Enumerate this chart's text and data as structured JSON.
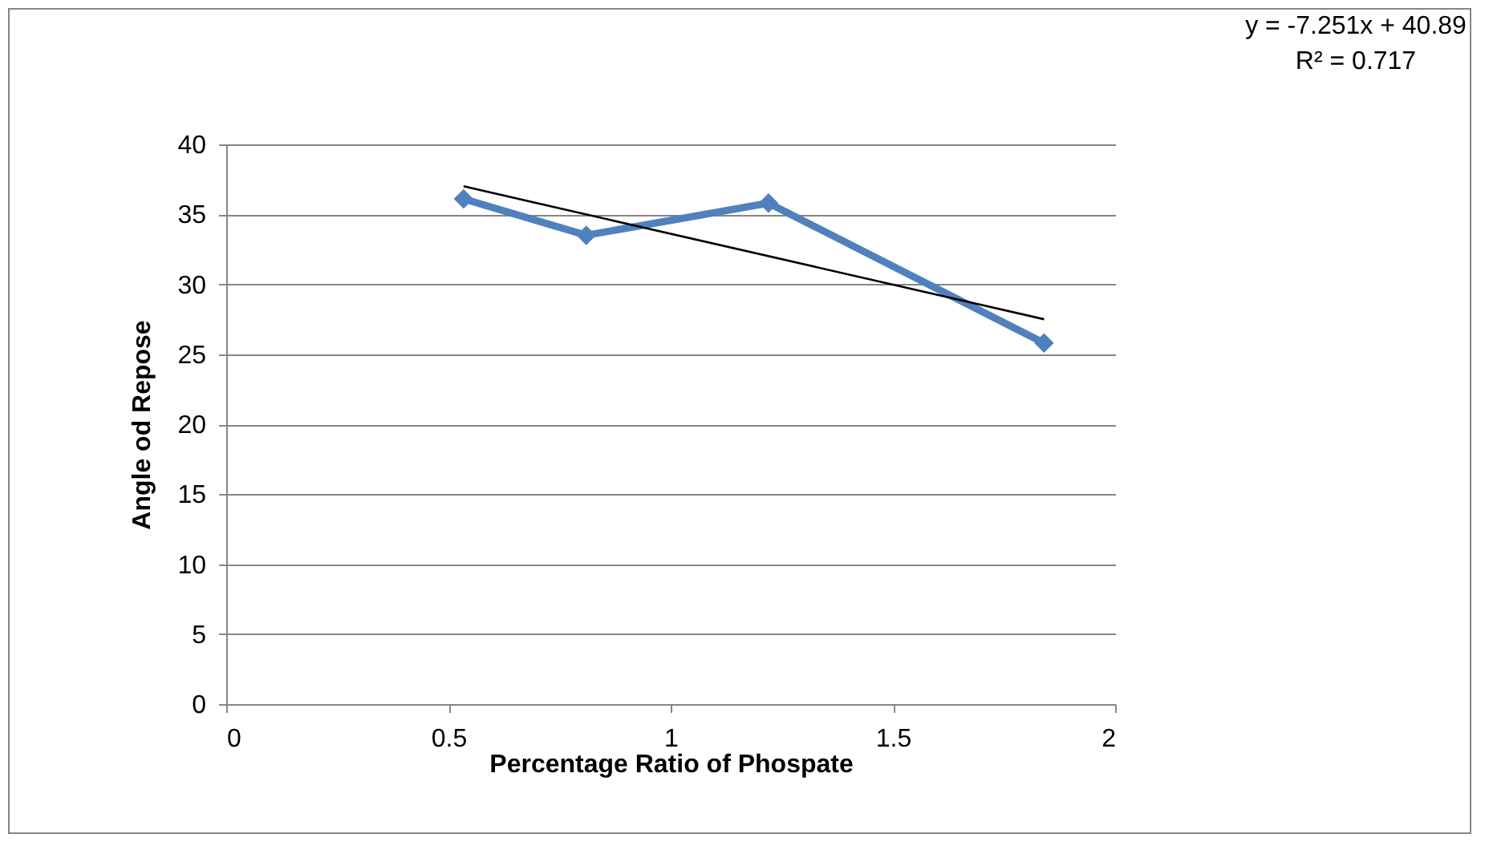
{
  "chart_data": {
    "type": "line",
    "xlabel": "Percentage Ratio of Phospate",
    "ylabel": "Angle od Repose",
    "annotations": [
      "y = -7.251x + 40.89",
      "R² = 0.717"
    ],
    "series": [
      {
        "color": "#4f81bd",
        "marker": "diamond",
        "x": [
          0.534,
          0.81,
          1.22,
          1.84
        ],
        "values": [
          36.1,
          33.5,
          35.8,
          25.8
        ]
      },
      {
        "color": "#000000",
        "marker": "none",
        "x": [
          0.534,
          1.84
        ],
        "values": [
          37.0,
          27.5
        ]
      }
    ],
    "xlim": [
      0,
      2
    ],
    "xticks": [
      {
        "value": 0,
        "label": "0"
      },
      0.5,
      {
        "value": 1,
        "label": "1"
      },
      1.5,
      {
        "value": 2,
        "label": "2"
      }
    ],
    "ylim": [
      0,
      40
    ],
    "yticks": [
      0,
      5,
      10,
      15,
      20,
      25,
      30,
      35,
      40
    ],
    "grid": "y"
  }
}
